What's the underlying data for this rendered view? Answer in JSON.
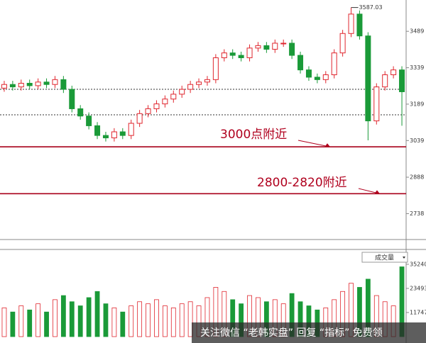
{
  "chart_data": [
    {
      "type": "candlestick",
      "max_label": 3587.03,
      "open": [
        3255,
        3270,
        3260,
        3275,
        3265,
        3280,
        3270,
        3290,
        3250,
        3170,
        3140,
        3100,
        3060,
        3050,
        3075,
        3060,
        3110,
        3150,
        3170,
        3190,
        3210,
        3230,
        3250,
        3270,
        3280,
        3290,
        3380,
        3400,
        3390,
        3380,
        3420,
        3430,
        3415,
        3440,
        3440,
        3390,
        3330,
        3300,
        3290,
        3310,
        3400,
        3480,
        3560,
        3470,
        3120,
        3260,
        3310,
        3330
      ],
      "high": [
        3285,
        3285,
        3290,
        3290,
        3295,
        3295,
        3305,
        3305,
        3265,
        3185,
        3155,
        3115,
        3075,
        3090,
        3090,
        3125,
        3165,
        3185,
        3205,
        3225,
        3245,
        3265,
        3285,
        3295,
        3305,
        3395,
        3415,
        3415,
        3405,
        3435,
        3445,
        3445,
        3455,
        3455,
        3455,
        3405,
        3345,
        3315,
        3325,
        3415,
        3495,
        3587.03,
        3575,
        3485,
        3275,
        3325,
        3345,
        3345
      ],
      "low": [
        3240,
        3245,
        3245,
        3250,
        3250,
        3255,
        3255,
        3235,
        3155,
        3125,
        3085,
        3045,
        3035,
        3035,
        3045,
        3045,
        3095,
        3135,
        3155,
        3175,
        3195,
        3215,
        3235,
        3255,
        3265,
        3275,
        3365,
        3375,
        3365,
        3365,
        3405,
        3400,
        3400,
        3425,
        3375,
        3315,
        3285,
        3275,
        3275,
        3295,
        3385,
        3465,
        3455,
        3040,
        3105,
        3245,
        3295,
        3100
      ],
      "close": [
        3270,
        3260,
        3275,
        3265,
        3280,
        3270,
        3290,
        3250,
        3170,
        3140,
        3100,
        3060,
        3050,
        3075,
        3060,
        3110,
        3150,
        3170,
        3190,
        3210,
        3230,
        3250,
        3270,
        3280,
        3290,
        3380,
        3400,
        3390,
        3380,
        3420,
        3430,
        3415,
        3440,
        3440,
        3390,
        3330,
        3300,
        3290,
        3310,
        3400,
        3480,
        3560,
        3470,
        3120,
        3260,
        3310,
        3330,
        3240
      ],
      "up_color": "#e0262e",
      "down_color": "#1a9a38",
      "ylim": [
        2640,
        3618
      ],
      "yticks": [
        3489,
        3339,
        3189,
        3039,
        2888,
        2738
      ],
      "hlines": [
        {
          "value": 3250,
          "color": "#333333"
        },
        {
          "value": 3145,
          "color": "#333333"
        },
        {
          "value": 3013,
          "color": "#a8001a"
        },
        {
          "value": 2820,
          "color": "#a8001a"
        }
      ],
      "annotations": [
        "3000点附近",
        "2800-2820附近"
      ]
    },
    {
      "type": "bar",
      "title": "成交量",
      "values": [
        14000,
        12000,
        15000,
        13000,
        16000,
        12000,
        18000,
        20000,
        17000,
        15000,
        19000,
        22000,
        16000,
        14000,
        12000,
        15000,
        17000,
        16000,
        18000,
        15000,
        14000,
        16000,
        17000,
        15000,
        19000,
        24000,
        22000,
        18000,
        16000,
        20000,
        19000,
        17000,
        18000,
        16000,
        21000,
        17000,
        15000,
        13000,
        14000,
        18000,
        22000,
        26000,
        24000,
        28000,
        20000,
        17000,
        15000,
        34000
      ],
      "ylim": [
        0,
        39700
      ],
      "yticks": [
        35240,
        23493,
        11747
      ]
    }
  ],
  "watermark": "关注微信 “老韩实盘” 回复 “指标” 免费领"
}
